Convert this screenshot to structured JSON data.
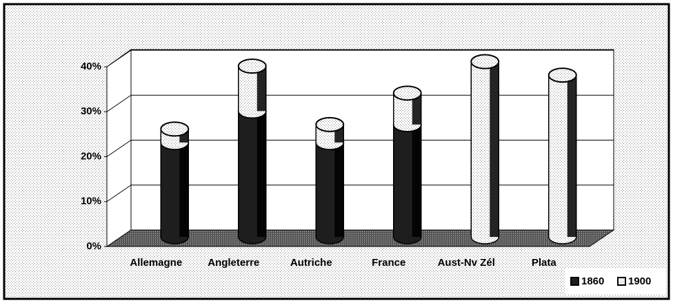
{
  "chart_data": {
    "type": "bar",
    "stacked": true,
    "categories": [
      "Allemagne",
      "Angleterre",
      "Autriche",
      "France",
      "Aust-Nv Zél",
      "Plata"
    ],
    "series": [
      {
        "name": "1860",
        "color": "#1e1e1e",
        "values": [
          21,
          28,
          21,
          25,
          0,
          0
        ]
      },
      {
        "name": "1900",
        "color": "#f2f2f2",
        "values": [
          3,
          10,
          4,
          7,
          39,
          36
        ]
      }
    ],
    "ylim": [
      0,
      40
    ],
    "yticks": [
      {
        "value": 0,
        "label": "0%"
      },
      {
        "value": 10,
        "label": "10%"
      },
      {
        "value": 20,
        "label": "20%"
      },
      {
        "value": 30,
        "label": "30%"
      },
      {
        "value": 40,
        "label": "40%"
      }
    ],
    "grid": true,
    "legend": "bottom-right"
  }
}
